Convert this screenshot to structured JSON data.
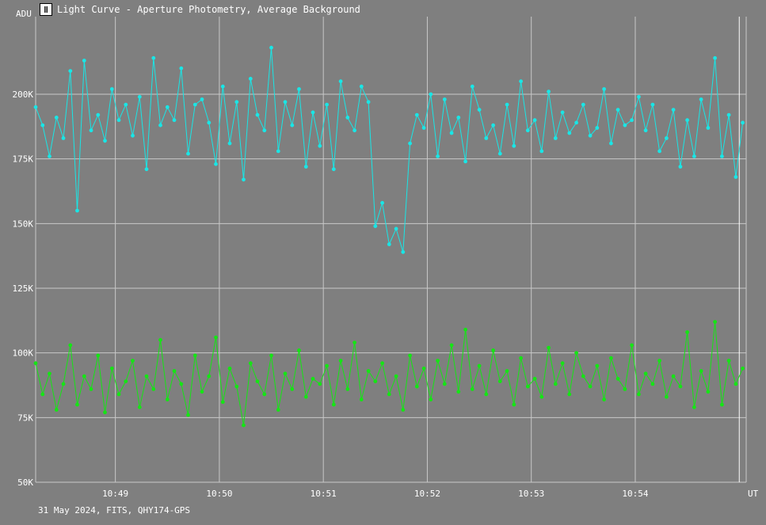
{
  "window": {
    "title": "Light Curve - Aperture Photometry, Average Background",
    "icon": "light-curve-app-icon"
  },
  "footer": "31 May 2024, FITS, QHY174-GPS",
  "colors": {
    "background": "#7f7f7f",
    "grid": "#c8c8c8",
    "series_top": "#19e6e6",
    "series_bottom": "#14e614"
  },
  "chart_data": {
    "type": "line",
    "title": "Light Curve - Aperture Photometry, Average Background",
    "ylabel": "ADU",
    "xlabel": "UT",
    "ylim": [
      50000,
      230000
    ],
    "xlim": [
      "10:48:14",
      "10:55:04"
    ],
    "grid": true,
    "y_ticks": [
      {
        "value": 50000,
        "label": "50K"
      },
      {
        "value": 75000,
        "label": "75K"
      },
      {
        "value": 100000,
        "label": "100K"
      },
      {
        "value": 125000,
        "label": "125K"
      },
      {
        "value": 150000,
        "label": "150K"
      },
      {
        "value": 175000,
        "label": "175K"
      },
      {
        "value": 200000,
        "label": "200K"
      }
    ],
    "x_ticks": [
      {
        "value": "10:49:00",
        "label": "10:49"
      },
      {
        "value": "10:50:00",
        "label": "10:50"
      },
      {
        "value": "10:51:00",
        "label": "10:51"
      },
      {
        "value": "10:52:00",
        "label": "10:52"
      },
      {
        "value": "10:53:00",
        "label": "10:53"
      },
      {
        "value": "10:54:00",
        "label": "10:54"
      }
    ],
    "marker_line": "10:55:00",
    "series": [
      {
        "color": "#19e6e6",
        "x": [
          "10:48:14",
          "10:48:18",
          "10:48:22",
          "10:48:26",
          "10:48:30",
          "10:48:34",
          "10:48:38",
          "10:48:42",
          "10:48:46",
          "10:48:50",
          "10:48:54",
          "10:48:58",
          "10:49:02",
          "10:49:06",
          "10:49:10",
          "10:49:14",
          "10:49:18",
          "10:49:22",
          "10:49:26",
          "10:49:30",
          "10:49:34",
          "10:49:38",
          "10:49:42",
          "10:49:46",
          "10:49:50",
          "10:49:54",
          "10:49:58",
          "10:50:02",
          "10:50:06",
          "10:50:10",
          "10:50:14",
          "10:50:18",
          "10:50:22",
          "10:50:26",
          "10:50:30",
          "10:50:34",
          "10:50:38",
          "10:50:42",
          "10:50:46",
          "10:50:50",
          "10:50:54",
          "10:50:58",
          "10:51:02",
          "10:51:06",
          "10:51:10",
          "10:51:14",
          "10:51:18",
          "10:51:22",
          "10:51:26",
          "10:51:30",
          "10:51:34",
          "10:51:38",
          "10:51:42",
          "10:51:46",
          "10:51:50",
          "10:51:54",
          "10:51:58",
          "10:52:02",
          "10:52:06",
          "10:52:10",
          "10:52:14",
          "10:52:18",
          "10:52:22",
          "10:52:26",
          "10:52:30",
          "10:52:34",
          "10:52:38",
          "10:52:42",
          "10:52:46",
          "10:52:50",
          "10:52:54",
          "10:52:58",
          "10:53:02",
          "10:53:06",
          "10:53:10",
          "10:53:14",
          "10:53:18",
          "10:53:22",
          "10:53:26",
          "10:53:30",
          "10:53:34",
          "10:53:38",
          "10:53:42",
          "10:53:46",
          "10:53:50",
          "10:53:54",
          "10:53:58",
          "10:54:02",
          "10:54:06",
          "10:54:10",
          "10:54:14",
          "10:54:18",
          "10:54:22",
          "10:54:26",
          "10:54:30",
          "10:54:34",
          "10:54:38",
          "10:54:42",
          "10:54:46",
          "10:54:50",
          "10:54:54",
          "10:54:58",
          "10:55:02"
        ],
        "values": [
          195000,
          188000,
          176000,
          191000,
          183000,
          209000,
          155000,
          213000,
          186000,
          192000,
          182000,
          202000,
          190000,
          196000,
          184000,
          199000,
          171000,
          214000,
          188000,
          195000,
          190000,
          210000,
          177000,
          196000,
          198000,
          189000,
          173000,
          203000,
          181000,
          197000,
          167000,
          206000,
          192000,
          186000,
          218000,
          178000,
          197000,
          188000,
          202000,
          172000,
          193000,
          180000,
          196000,
          171000,
          205000,
          191000,
          186000,
          203000,
          197000,
          149000,
          158000,
          142000,
          148000,
          139000,
          181000,
          192000,
          187000,
          200000,
          176000,
          198000,
          185000,
          191000,
          174000,
          203000,
          194000,
          183000,
          188000,
          177000,
          196000,
          180000,
          205000,
          186000,
          190000,
          178000,
          201000,
          183000,
          193000,
          185000,
          189000,
          196000,
          184000,
          187000,
          202000,
          181000,
          194000,
          188000,
          190000,
          199000,
          186000,
          196000,
          178000,
          183000,
          194000,
          172000,
          190000,
          176000,
          198000,
          187000,
          214000,
          176000,
          192000,
          168000,
          189000
        ]
      },
      {
        "color": "#14e614",
        "x": [
          "10:48:14",
          "10:48:18",
          "10:48:22",
          "10:48:26",
          "10:48:30",
          "10:48:34",
          "10:48:38",
          "10:48:42",
          "10:48:46",
          "10:48:50",
          "10:48:54",
          "10:48:58",
          "10:49:02",
          "10:49:06",
          "10:49:10",
          "10:49:14",
          "10:49:18",
          "10:49:22",
          "10:49:26",
          "10:49:30",
          "10:49:34",
          "10:49:38",
          "10:49:42",
          "10:49:46",
          "10:49:50",
          "10:49:54",
          "10:49:58",
          "10:50:02",
          "10:50:06",
          "10:50:10",
          "10:50:14",
          "10:50:18",
          "10:50:22",
          "10:50:26",
          "10:50:30",
          "10:50:34",
          "10:50:38",
          "10:50:42",
          "10:50:46",
          "10:50:50",
          "10:50:54",
          "10:50:58",
          "10:51:02",
          "10:51:06",
          "10:51:10",
          "10:51:14",
          "10:51:18",
          "10:51:22",
          "10:51:26",
          "10:51:30",
          "10:51:34",
          "10:51:38",
          "10:51:42",
          "10:51:46",
          "10:51:50",
          "10:51:54",
          "10:51:58",
          "10:52:02",
          "10:52:06",
          "10:52:10",
          "10:52:14",
          "10:52:18",
          "10:52:22",
          "10:52:26",
          "10:52:30",
          "10:52:34",
          "10:52:38",
          "10:52:42",
          "10:52:46",
          "10:52:50",
          "10:52:54",
          "10:52:58",
          "10:53:02",
          "10:53:06",
          "10:53:10",
          "10:53:14",
          "10:53:18",
          "10:53:22",
          "10:53:26",
          "10:53:30",
          "10:53:34",
          "10:53:38",
          "10:53:42",
          "10:53:46",
          "10:53:50",
          "10:53:54",
          "10:53:58",
          "10:54:02",
          "10:54:06",
          "10:54:10",
          "10:54:14",
          "10:54:18",
          "10:54:22",
          "10:54:26",
          "10:54:30",
          "10:54:34",
          "10:54:38",
          "10:54:42",
          "10:54:46",
          "10:54:50",
          "10:54:54",
          "10:54:58",
          "10:55:02"
        ],
        "values": [
          96000,
          84000,
          92000,
          78000,
          88000,
          103000,
          80000,
          91000,
          86000,
          99000,
          77000,
          94000,
          84000,
          89000,
          97000,
          79000,
          91000,
          86000,
          105000,
          82000,
          93000,
          88000,
          76000,
          99000,
          85000,
          91000,
          106000,
          81000,
          94000,
          87000,
          72000,
          96000,
          89000,
          84000,
          99000,
          78000,
          92000,
          86000,
          101000,
          83000,
          90000,
          88000,
          95000,
          80000,
          97000,
          86000,
          104000,
          82000,
          93000,
          89000,
          96000,
          84000,
          91000,
          78000,
          99000,
          87000,
          94000,
          82000,
          97000,
          88000,
          103000,
          85000,
          109000,
          86000,
          95000,
          84000,
          101000,
          89000,
          93000,
          80000,
          98000,
          87000,
          90000,
          83000,
          102000,
          88000,
          96000,
          84000,
          100000,
          91000,
          87000,
          95000,
          82000,
          98000,
          90000,
          86000,
          103000,
          84000,
          92000,
          88000,
          97000,
          83000,
          91000,
          87000,
          108000,
          79000,
          93000,
          85000,
          112000,
          80000,
          97000,
          88000,
          94000
        ]
      }
    ]
  }
}
